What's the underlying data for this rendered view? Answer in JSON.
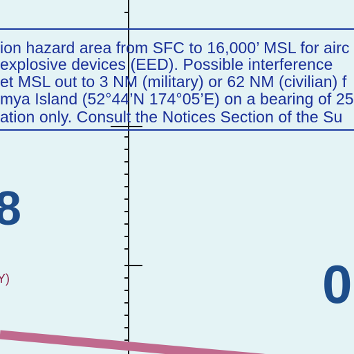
{
  "map": {
    "notice": {
      "lines": [
        "ion hazard area from SFC to 16,000’ MSL for airc",
        " explosive devices (EED). Possible interference",
        "et MSL out to 3 NM (military) or 62 NM (civilian) f",
        "mya Island (52°44’N 174°05’E) on a bearing of 25",
        "ation only. Consult the Notices Section of the Su"
      ]
    },
    "labels": {
      "left_number": "8",
      "right_number": "0",
      "left_paren": "Y)"
    },
    "colors": {
      "background": "#e4f3f5",
      "notice_text": "#1a2f98",
      "notice_border": "#1b3aa0",
      "meridian": "#1a1a1a",
      "route_line": "#c06a8e",
      "big_numbers": "#1d4d8a",
      "paren_text": "#8a2048"
    }
  }
}
